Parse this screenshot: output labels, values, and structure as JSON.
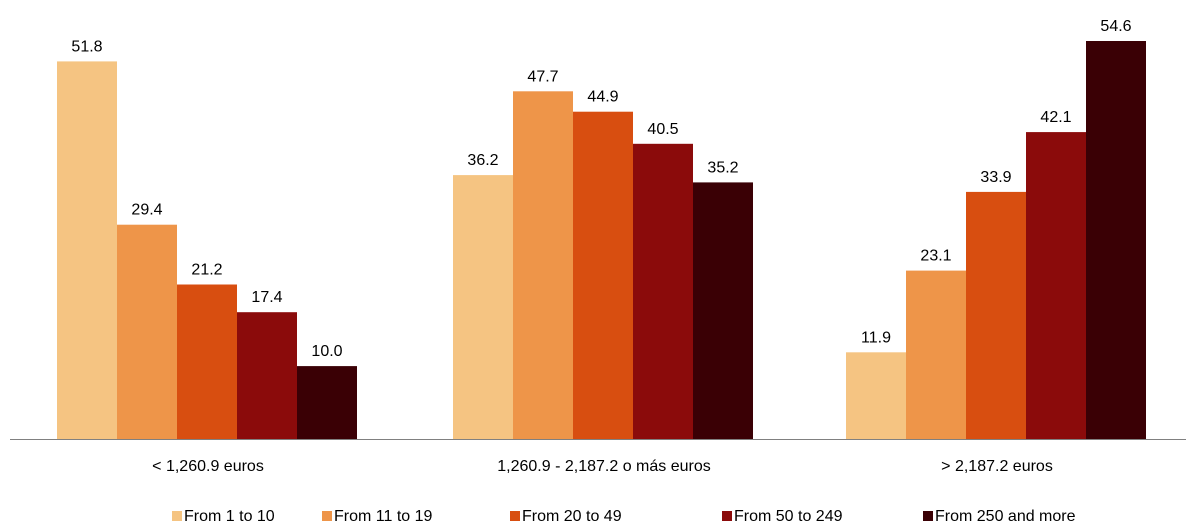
{
  "chart_data": {
    "type": "bar",
    "categories": [
      "< 1,260.9 euros",
      "1,260.9 - 2,187.2 o más euros",
      "> 2,187.2 euros"
    ],
    "series": [
      {
        "name": "From 1 to 10",
        "values": [
          51.8,
          36.2,
          11.9
        ],
        "labels": [
          "51.8",
          "36.2",
          "11.9"
        ],
        "color": "#F5C482"
      },
      {
        "name": "From 11 to 19",
        "values": [
          29.4,
          47.7,
          23.1
        ],
        "labels": [
          "29.4",
          "47.7",
          "23.1"
        ],
        "color": "#EE9549"
      },
      {
        "name": "From 20 to 49",
        "values": [
          21.2,
          44.9,
          33.9
        ],
        "labels": [
          "21.2",
          "44.9",
          "33.9"
        ],
        "color": "#D84E10"
      },
      {
        "name": "From 50 to 249",
        "values": [
          17.4,
          40.5,
          42.1
        ],
        "labels": [
          "17.4",
          "40.5",
          "42.1"
        ],
        "color": "#8B0B0B"
      },
      {
        "name": "From 250 and more",
        "values": [
          10.0,
          35.2,
          54.6
        ],
        "labels": [
          "10.0",
          "35.2",
          "54.6"
        ],
        "color": "#3A0005"
      }
    ],
    "ylim": [
      0,
      54.6
    ],
    "grid": false,
    "legend_position": "bottom",
    "axis_color": "#808080"
  }
}
